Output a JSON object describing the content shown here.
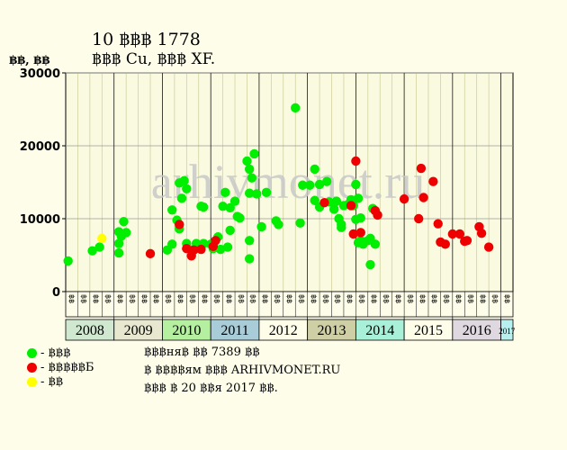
{
  "header": {
    "title": "10 ฿฿฿ 1778",
    "subtitle": "฿฿฿ Cu, ฿฿฿ XF.",
    "ylabel": "฿฿, ฿฿"
  },
  "watermark": "arhivmonet.ru",
  "legend": [
    {
      "label": "- ฿฿฿",
      "color": "#00ee00"
    },
    {
      "label": "- ฿฿฿฿฿Б",
      "color": "#ee0000"
    },
    {
      "label": "- ฿฿",
      "color": "#ffff00"
    }
  ],
  "notes": [
    "฿฿฿ня฿ ฿฿ 7389 ฿฿",
    "฿ ฿฿฿฿ям ฿฿฿ ARHIVMONET.RU",
    "฿฿฿ ฿ 20 ฿฿я 2017 ฿฿."
  ],
  "colors": {
    "background": "#fdfde9",
    "plot_bg": "#fafae0",
    "grid": "#cccc99",
    "green": "#00ee00",
    "red": "#ee0000",
    "yellow": "#ffff00"
  },
  "chart_data": {
    "type": "scatter",
    "ylim": [
      0,
      30000
    ],
    "yticks": [
      "0",
      "10000",
      "20000",
      "30000"
    ],
    "xlim": [
      2008,
      2017.25
    ],
    "period_labels": [
      "฿฿",
      "฿฿",
      "฿฿",
      "฿฿"
    ],
    "years": [
      {
        "label": "2008",
        "color": "#cfe8cf"
      },
      {
        "label": "2009",
        "color": "#e8e8d0"
      },
      {
        "label": "2010",
        "color": "#b4f0a0"
      },
      {
        "label": "2011",
        "color": "#a8ccd8"
      },
      {
        "label": "2012",
        "color": "#fdfde9"
      },
      {
        "label": "2013",
        "color": "#cfcfa6"
      },
      {
        "label": "2014",
        "color": "#a8f0d8"
      },
      {
        "label": "2015",
        "color": "#fdfde9"
      },
      {
        "label": "2016",
        "color": "#e0d8e0"
      },
      {
        "label": "2017",
        "color": "#b8f0f0"
      }
    ],
    "series": [
      {
        "color": "#00ee00",
        "points": [
          [
            2008.05,
            4200
          ],
          [
            2008.55,
            5600
          ],
          [
            2008.7,
            6100
          ],
          [
            2009.1,
            5300
          ],
          [
            2009.1,
            6600
          ],
          [
            2009.1,
            8200
          ],
          [
            2009.15,
            7600
          ],
          [
            2009.2,
            9600
          ],
          [
            2009.25,
            8100
          ],
          [
            2010.1,
            5700
          ],
          [
            2010.2,
            6500
          ],
          [
            2010.2,
            11200
          ],
          [
            2010.3,
            9800
          ],
          [
            2010.35,
            14900
          ],
          [
            2010.35,
            8600
          ],
          [
            2010.4,
            12800
          ],
          [
            2010.45,
            15200
          ],
          [
            2010.5,
            14100
          ],
          [
            2010.5,
            6600
          ],
          [
            2010.6,
            5700
          ],
          [
            2010.7,
            6600
          ],
          [
            2010.8,
            11700
          ],
          [
            2010.85,
            11600
          ],
          [
            2010.85,
            6600
          ],
          [
            2011.0,
            6500
          ],
          [
            2011.05,
            5900
          ],
          [
            2011.15,
            7500
          ],
          [
            2011.2,
            5800
          ],
          [
            2011.25,
            11700
          ],
          [
            2011.3,
            13600
          ],
          [
            2011.35,
            6100
          ],
          [
            2011.4,
            8400
          ],
          [
            2011.4,
            11500
          ],
          [
            2011.5,
            12400
          ],
          [
            2011.55,
            10300
          ],
          [
            2011.6,
            10100
          ],
          [
            2011.75,
            17900
          ],
          [
            2011.8,
            16800
          ],
          [
            2011.85,
            15600
          ],
          [
            2011.8,
            13500
          ],
          [
            2011.8,
            7000
          ],
          [
            2011.8,
            4500
          ],
          [
            2011.9,
            18900
          ],
          [
            2011.95,
            13400
          ],
          [
            2012.05,
            8900
          ],
          [
            2012.15,
            13600
          ],
          [
            2012.35,
            9700
          ],
          [
            2012.4,
            9200
          ],
          [
            2012.75,
            25200
          ],
          [
            2012.85,
            9400
          ],
          [
            2012.9,
            14600
          ],
          [
            2013.05,
            14600
          ],
          [
            2013.15,
            16800
          ],
          [
            2013.15,
            12500
          ],
          [
            2013.25,
            11600
          ],
          [
            2013.25,
            14700
          ],
          [
            2013.4,
            15100
          ],
          [
            2013.45,
            12300
          ],
          [
            2013.55,
            11300
          ],
          [
            2013.6,
            12400
          ],
          [
            2013.65,
            10000
          ],
          [
            2013.7,
            9200
          ],
          [
            2013.7,
            8800
          ],
          [
            2013.75,
            11800
          ],
          [
            2013.85,
            12000
          ],
          [
            2013.9,
            12600
          ],
          [
            2013.95,
            11800
          ],
          [
            2014.0,
            14700
          ],
          [
            2014.05,
            12800
          ],
          [
            2014.1,
            10100
          ],
          [
            2014.0,
            9900
          ],
          [
            2014.05,
            6700
          ],
          [
            2014.1,
            7000
          ],
          [
            2014.15,
            6500
          ],
          [
            2014.25,
            7000
          ],
          [
            2014.3,
            7300
          ],
          [
            2014.3,
            3700
          ],
          [
            2014.35,
            11400
          ],
          [
            2014.4,
            6500
          ]
        ]
      },
      {
        "color": "#ee0000",
        "points": [
          [
            2009.75,
            5200
          ],
          [
            2010.35,
            9200
          ],
          [
            2010.5,
            5900
          ],
          [
            2010.6,
            4900
          ],
          [
            2010.65,
            5700
          ],
          [
            2010.8,
            5800
          ],
          [
            2011.05,
            6200
          ],
          [
            2011.1,
            7000
          ],
          [
            2013.35,
            12200
          ],
          [
            2013.9,
            11800
          ],
          [
            2013.95,
            7900
          ],
          [
            2014.0,
            17900
          ],
          [
            2014.1,
            8100
          ],
          [
            2014.4,
            11100
          ],
          [
            2014.45,
            10500
          ],
          [
            2015.0,
            12700
          ],
          [
            2015.3,
            10000
          ],
          [
            2015.35,
            16900
          ],
          [
            2015.4,
            12900
          ],
          [
            2015.6,
            15100
          ],
          [
            2015.7,
            9300
          ],
          [
            2015.75,
            6800
          ],
          [
            2015.85,
            6500
          ],
          [
            2016.0,
            7900
          ],
          [
            2016.15,
            7900
          ],
          [
            2016.25,
            6900
          ],
          [
            2016.3,
            7000
          ],
          [
            2016.55,
            8900
          ],
          [
            2016.6,
            8000
          ],
          [
            2016.75,
            6100
          ]
        ]
      },
      {
        "color": "#ffff00",
        "points": [
          [
            2008.75,
            7300
          ]
        ]
      }
    ]
  }
}
